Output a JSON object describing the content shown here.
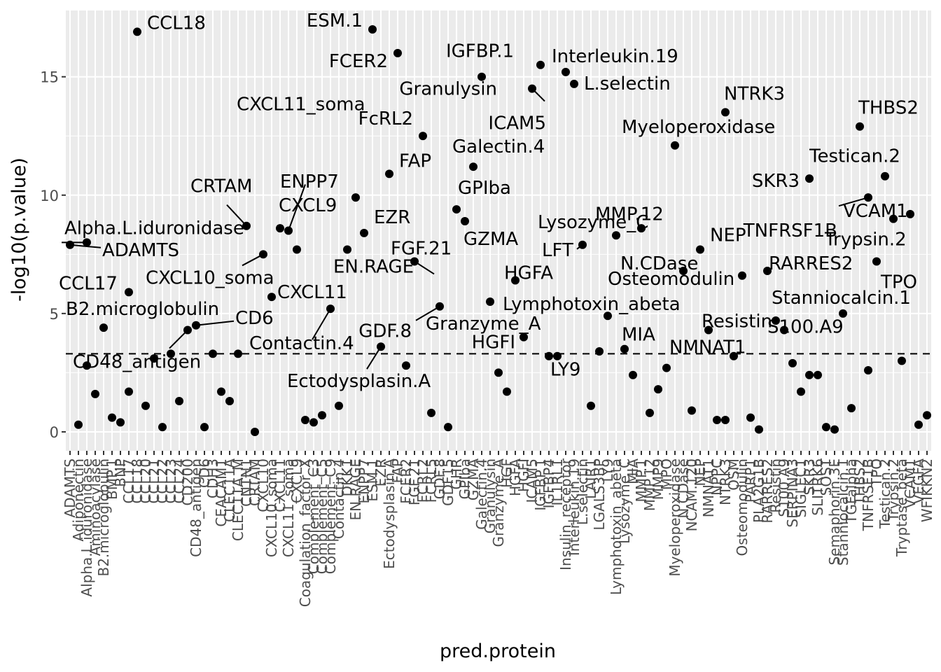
{
  "chart_data": {
    "type": "scatter",
    "xlabel": "pred.protein",
    "ylabel": "-log10(p.value)",
    "ylim": [
      -0.8,
      17.8
    ],
    "yticks": [
      0,
      5,
      10,
      15
    ],
    "threshold": 3.3,
    "grid": true,
    "categories": [
      "ADAMTS",
      "Adiponectin",
      "Alpha.L.iduronidase",
      "Aminoacylase",
      "B2.microglobulin",
      "BMP.1",
      "BNP",
      "CCL17",
      "CCL18",
      "CCL20",
      "CCL21",
      "CCL22",
      "CCL23",
      "CCL24",
      "CD200",
      "CD48_antigen",
      "CD6",
      "CDH3",
      "CEACAM1",
      "CLEC11A",
      "CLEC11A_M",
      "CNTN1",
      "CRTAM",
      "CXCL10",
      "CXCL10_soma",
      "CXCL11",
      "CXCL11_soma",
      "CXCL9",
      "Coagulation_factor_X",
      "Complement_C3",
      "Complement_C5",
      "Complement_C9",
      "Contactin.4",
      "DKK1",
      "EN.RAGE",
      "ENPP7",
      "ESM.1",
      "EZR",
      "Ectodysplasin.A",
      "FAP",
      "FCER2",
      "FGF.21",
      "FCRL2",
      "FCRL5",
      "GDF.8",
      "GDF15",
      "GHR",
      "GPIba",
      "GZMA",
      "Galectin.4",
      "Granulysin",
      "Granzyme_A",
      "HGF",
      "HGFA",
      "HGFI",
      "ICAM5",
      "IGFBP.1",
      "IGFBP4",
      "IL1RL1",
      "Insulin_receptor",
      "Interleukin.19",
      "L.selectin",
      "LAIR1",
      "LGALS3BP",
      "LY9",
      "Lymphotoxin_abeta",
      "Lysozyme_C",
      "MIA",
      "MMP.1",
      "MMP.12",
      "MMP9",
      "MPO",
      "Myeloperoxidase",
      "N.CDase",
      "NCAM.120",
      "NEP",
      "NMNAT1",
      "NPPC",
      "NTRK3",
      "OSM",
      "Osteomodulin",
      "PARP1",
      "PLA2G1B",
      "RARRES2",
      "Resistin",
      "S100.A9",
      "SERPINA3",
      "SIGLEC1",
      "SKR3",
      "SLITRK6",
      "SOST",
      "Semaphorin.3E",
      "Stanniocalcin.1",
      "TGFalpha",
      "THBS2",
      "TNFRSF1B",
      "TPO",
      "Testican.2",
      "Trypsin.2",
      "Tryptase_beta",
      "VCAM1",
      "VEGFA",
      "WFIKKN2"
    ],
    "points": [
      {
        "x": "ADAMTS",
        "y": 7.9
      },
      {
        "x": "Adiponectin",
        "y": 0.3
      },
      {
        "x": "Alpha.L.iduronidase",
        "y": 2.8
      },
      {
        "x": "Alpha.L.iduronidase",
        "y": 8.0
      },
      {
        "x": "Aminoacylase",
        "y": 1.6
      },
      {
        "x": "B2.microglobulin",
        "y": 4.4
      },
      {
        "x": "BMP.1",
        "y": 0.6
      },
      {
        "x": "BNP",
        "y": 0.4
      },
      {
        "x": "CCL17",
        "y": 1.7
      },
      {
        "x": "CCL17",
        "y": 5.9
      },
      {
        "x": "CCL18",
        "y": 16.9
      },
      {
        "x": "CCL20",
        "y": 1.1
      },
      {
        "x": "CCL21",
        "y": 3.1
      },
      {
        "x": "CCL22",
        "y": 0.2
      },
      {
        "x": "CCL23",
        "y": 3.3
      },
      {
        "x": "CCL24",
        "y": 1.3
      },
      {
        "x": "CD200",
        "y": 4.3
      },
      {
        "x": "CD48_antigen",
        "y": 4.5
      },
      {
        "x": "CD6",
        "y": 0.2
      },
      {
        "x": "CDH3",
        "y": 3.3
      },
      {
        "x": "CEACAM1",
        "y": 1.7
      },
      {
        "x": "CLEC11A",
        "y": 1.3
      },
      {
        "x": "CLEC11A_M",
        "y": 3.3
      },
      {
        "x": "CNTN1",
        "y": 8.7
      },
      {
        "x": "CRTAM",
        "y": 0.0
      },
      {
        "x": "CXCL10",
        "y": 7.5
      },
      {
        "x": "CXCL10_soma",
        "y": 5.7
      },
      {
        "x": "CXCL11",
        "y": 8.6
      },
      {
        "x": "CXCL11_soma",
        "y": 8.5
      },
      {
        "x": "CXCL9",
        "y": 7.7
      },
      {
        "x": "Coagulation_factor_X",
        "y": 0.5
      },
      {
        "x": "Complement_C3",
        "y": 0.4
      },
      {
        "x": "Complement_C5",
        "y": 0.7
      },
      {
        "x": "Complement_C9",
        "y": 5.2
      },
      {
        "x": "Contactin.4",
        "y": 1.1
      },
      {
        "x": "DKK1",
        "y": 7.7
      },
      {
        "x": "EN.RAGE",
        "y": 9.9
      },
      {
        "x": "ENPP7",
        "y": 8.4
      },
      {
        "x": "ESM.1",
        "y": 17.0
      },
      {
        "x": "EZR",
        "y": 3.6
      },
      {
        "x": "Ectodysplasin.A",
        "y": 10.9
      },
      {
        "x": "FAP",
        "y": 16.0
      },
      {
        "x": "FCER2",
        "y": 2.8
      },
      {
        "x": "FGF.21",
        "y": 7.2
      },
      {
        "x": "FCRL2",
        "y": 12.5
      },
      {
        "x": "FCRL5",
        "y": 0.8
      },
      {
        "x": "GDF.8",
        "y": 5.3
      },
      {
        "x": "GDF15",
        "y": 0.2
      },
      {
        "x": "GHR",
        "y": 9.4
      },
      {
        "x": "GPIba",
        "y": 8.9
      },
      {
        "x": "GZMA",
        "y": 11.2
      },
      {
        "x": "Galectin.4",
        "y": 15.0
      },
      {
        "x": "Granulysin",
        "y": 5.5
      },
      {
        "x": "Granzyme_A",
        "y": 2.5
      },
      {
        "x": "HGF",
        "y": 1.7
      },
      {
        "x": "HGFA",
        "y": 6.4
      },
      {
        "x": "HGFI",
        "y": 4.0
      },
      {
        "x": "ICAM5",
        "y": 14.5
      },
      {
        "x": "IGFBP.1",
        "y": 15.5
      },
      {
        "x": "IGFBP4",
        "y": 3.2
      },
      {
        "x": "IL1RL1",
        "y": 3.2
      },
      {
        "x": "Insulin_receptor",
        "y": 15.2
      },
      {
        "x": "Interleukin.19",
        "y": 14.7
      },
      {
        "x": "L.selectin",
        "y": 7.9
      },
      {
        "x": "LAIR1",
        "y": 1.1
      },
      {
        "x": "LGALS3BP",
        "y": 3.4
      },
      {
        "x": "LY9",
        "y": 4.9
      },
      {
        "x": "Lymphotoxin_abeta",
        "y": 8.3
      },
      {
        "x": "Lysozyme_C",
        "y": 3.5
      },
      {
        "x": "MIA",
        "y": 2.4
      },
      {
        "x": "MMP.1",
        "y": 8.6
      },
      {
        "x": "MMP.12",
        "y": 0.8
      },
      {
        "x": "MMP9",
        "y": 1.8
      },
      {
        "x": "MPO",
        "y": 2.7
      },
      {
        "x": "Myeloperoxidase",
        "y": 12.1
      },
      {
        "x": "N.CDase",
        "y": 6.8
      },
      {
        "x": "NCAM.120",
        "y": 0.9
      },
      {
        "x": "NEP",
        "y": 7.7
      },
      {
        "x": "NMNAT1",
        "y": 4.3
      },
      {
        "x": "NPPC",
        "y": 0.5
      },
      {
        "x": "NTRK3",
        "y": 0.5
      },
      {
        "x": "NTRK3",
        "y": 13.5
      },
      {
        "x": "OSM",
        "y": 3.2
      },
      {
        "x": "Osteomodulin",
        "y": 6.6
      },
      {
        "x": "PARP1",
        "y": 0.6
      },
      {
        "x": "PLA2G1B",
        "y": 0.1
      },
      {
        "x": "RARRES2",
        "y": 6.8
      },
      {
        "x": "Resistin",
        "y": 4.7
      },
      {
        "x": "S100.A9",
        "y": 4.3
      },
      {
        "x": "SERPINA3",
        "y": 2.9
      },
      {
        "x": "SIGLEC1",
        "y": 1.7
      },
      {
        "x": "SKR3",
        "y": 2.4
      },
      {
        "x": "SKR3",
        "y": 10.7
      },
      {
        "x": "SLITRK6",
        "y": 2.4
      },
      {
        "x": "SOST",
        "y": 0.2
      },
      {
        "x": "Semaphorin.3E",
        "y": 0.1
      },
      {
        "x": "Stanniocalcin.1",
        "y": 5.0
      },
      {
        "x": "TGFalpha",
        "y": 1.0
      },
      {
        "x": "THBS2",
        "y": 12.9
      },
      {
        "x": "TNFRSF1B",
        "y": 2.6
      },
      {
        "x": "TNFRSF1B",
        "y": 9.9
      },
      {
        "x": "TPO",
        "y": 7.2
      },
      {
        "x": "Testican.2",
        "y": 10.8
      },
      {
        "x": "Trypsin.2",
        "y": 9.0
      },
      {
        "x": "Tryptase_beta",
        "y": 3.0
      },
      {
        "x": "VCAM1",
        "y": 9.2
      },
      {
        "x": "VEGFA",
        "y": 0.3
      },
      {
        "x": "WFIKKN2",
        "y": 0.7
      }
    ],
    "annotations": [
      {
        "text": "CCL18",
        "x": "CCL18",
        "y": 16.9
      },
      {
        "text": "ESM.1",
        "x": "ESM.1",
        "y": 17.0
      },
      {
        "text": "FCER2",
        "x": "FAP",
        "y": 16.0
      },
      {
        "text": "IGFBP.1",
        "x": "Galectin.4",
        "y": 15.0
      },
      {
        "text": "Interleukin.19",
        "x": "Insulin_receptor",
        "y": 15.2
      },
      {
        "text": "L.selectin",
        "x": "Interleukin.19",
        "y": 14.7
      },
      {
        "text": "Granulysin",
        "x": "Galectin.4",
        "y": 15.0
      },
      {
        "text": "ICAM5",
        "x": "ICAM5",
        "y": 14.5
      },
      {
        "text": "NTRK3",
        "x": "NTRK3",
        "y": 13.5
      },
      {
        "text": "THBS2",
        "x": "THBS2",
        "y": 12.9
      },
      {
        "text": "FcRL2",
        "x": "FCRL2",
        "y": 12.5
      },
      {
        "text": "Myeloperoxidase",
        "x": "Myeloperoxidase",
        "y": 12.1
      },
      {
        "text": "CXCL11_soma",
        "x": "CXCL11_soma",
        "y": 8.5
      },
      {
        "text": "FAP",
        "x": "Ectodysplasin.A",
        "y": 10.9
      },
      {
        "text": "Galectin.4",
        "x": "GZMA",
        "y": 11.2
      },
      {
        "text": "Testican.2",
        "x": "Testican.2",
        "y": 10.8
      },
      {
        "text": "SKR3",
        "x": "SKR3",
        "y": 10.7
      },
      {
        "text": "CRTAM",
        "x": "CNTN1",
        "y": 8.7
      },
      {
        "text": "GPIba",
        "x": "GHR",
        "y": 9.4
      },
      {
        "text": "TNFRSF1B",
        "x": "TNFRSF1B",
        "y": 9.9
      },
      {
        "text": "VCAM1",
        "x": "TNFRSF1B",
        "y": 9.9
      },
      {
        "text": "ENPP7",
        "x": "EN.RAGE",
        "y": 9.9
      },
      {
        "text": "Alpha.L.iduronidase",
        "x": "Alpha.L.iduronidase",
        "y": 8.0
      },
      {
        "text": "MMP.12",
        "x": "Lymphotoxin_abeta",
        "y": 8.3
      },
      {
        "text": "EZR",
        "x": "ENPP7",
        "y": 8.4
      },
      {
        "text": "CXCL9",
        "x": "CXCL11",
        "y": 8.6
      },
      {
        "text": "GZMA",
        "x": "GPIba",
        "y": 8.9
      },
      {
        "text": "Trypsin.2",
        "x": "Trypsin.2",
        "y": 9.0
      },
      {
        "text": "ADAMTS",
        "x": "ADAMTS",
        "y": 7.9
      },
      {
        "text": "Lysozyme_C",
        "x": "L.selectin",
        "y": 7.9
      },
      {
        "text": "NEP",
        "x": "NEP",
        "y": 7.7
      },
      {
        "text": "LFT",
        "x": "L.selectin",
        "y": 7.9
      },
      {
        "text": "N.CDase",
        "x": "N.CDase",
        "y": 6.8
      },
      {
        "text": "EN.RAGE",
        "x": "FGF.21",
        "y": 7.2
      },
      {
        "text": "CXCL10_soma",
        "x": "CXCL10",
        "y": 7.5
      },
      {
        "text": "CCL17",
        "x": "CCL17",
        "y": 5.9
      },
      {
        "text": "RARRES2",
        "x": "RARRES2",
        "y": 6.8
      },
      {
        "text": "TPO",
        "x": "TPO",
        "y": 7.2
      },
      {
        "text": "HGFA",
        "x": "HGFA",
        "y": 6.4
      },
      {
        "text": "FGF.21",
        "x": "FGF.21",
        "y": 7.2
      },
      {
        "text": "Osteomodulin",
        "x": "N.CDase",
        "y": 6.8
      },
      {
        "text": "CXCL11",
        "x": "CXCL10_soma",
        "y": 5.7
      },
      {
        "text": "Lymphotoxin_abeta",
        "x": "Granulysin",
        "y": 5.5
      },
      {
        "text": "Stanniocalcin.1",
        "x": "Stanniocalcin.1",
        "y": 5.0
      },
      {
        "text": "B2.microglobulin",
        "x": "B2.microglobulin",
        "y": 4.4
      },
      {
        "text": "CD6",
        "x": "CD48_antigen",
        "y": 4.5
      },
      {
        "text": "Resistin",
        "x": "NMNAT1",
        "y": 4.3
      },
      {
        "text": "GDF.8",
        "x": "GDF.8",
        "y": 5.3
      },
      {
        "text": "Granzyme_A",
        "x": "Granulysin",
        "y": 5.5
      },
      {
        "text": "MIA",
        "x": "Lysozyme_C",
        "y": 3.5
      },
      {
        "text": "NMNAT1",
        "x": "OSM",
        "y": 3.2
      },
      {
        "text": "S100.A9",
        "x": "S100.A9",
        "y": 4.3
      },
      {
        "text": "CD48_antigen",
        "x": "CD200",
        "y": 4.3
      },
      {
        "text": "Contactin.4",
        "x": "Complement_C9",
        "y": 5.2
      },
      {
        "text": "HGFI",
        "x": "HGFI",
        "y": 4.0
      },
      {
        "text": "LY9",
        "x": "IL1RL1",
        "y": 3.2
      },
      {
        "text": "Ectodysplasin.A",
        "x": "EZR",
        "y": 3.6
      }
    ]
  }
}
